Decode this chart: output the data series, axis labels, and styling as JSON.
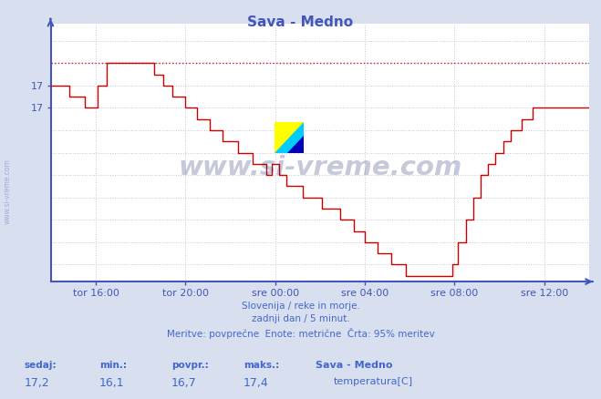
{
  "title": "Sava - Medno",
  "bg_color": "#d8e0f0",
  "plot_bg_color": "#ffffff",
  "line_color": "#cc0000",
  "axis_color": "#4455bb",
  "grid_color": "#c0c8e0",
  "text_color": "#4466cc",
  "footer_lines": [
    "Slovenija / reke in morje.",
    "zadnji dan / 5 minut.",
    "Meritve: povprečne  Enote: metrične  Črta: 95% meritev"
  ],
  "stats_labels": [
    "sedaj:",
    "min.:",
    "povpr.:",
    "maks.:"
  ],
  "stats_values": [
    "17,2",
    "16,1",
    "16,7",
    "17,4"
  ],
  "legend_name": "Sava - Medno",
  "legend_series": "temperatura[C]",
  "legend_color": "#cc0000",
  "x_ticks_labels": [
    "tor 16:00",
    "tor 20:00",
    "sre 00:00",
    "sre 04:00",
    "sre 08:00",
    "sre 12:00"
  ],
  "y_min": 15.45,
  "y_max": 17.75,
  "max_line_y": 17.4,
  "y_tick_vals": [
    17.0,
    17.2
  ],
  "y_tick_labels": [
    "17",
    "17"
  ],
  "n_points": 289,
  "x_tick_positions": [
    24,
    72,
    120,
    168,
    216,
    264
  ]
}
